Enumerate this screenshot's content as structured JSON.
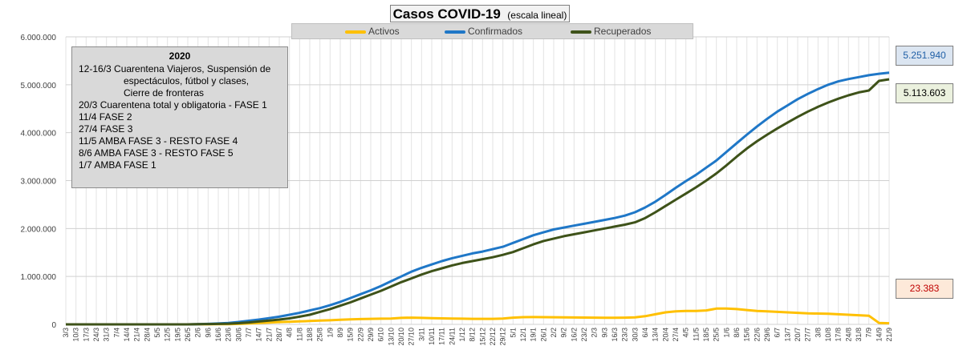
{
  "chart_data": {
    "type": "line",
    "title": "Casos  COVID-19",
    "subtitle": "(escala lineal)",
    "ylim": [
      0,
      6000000
    ],
    "y_ticks": [
      "0",
      "1.000.000",
      "2.000.000",
      "3.000.000",
      "4.000.000",
      "5.000.000",
      "6.000.000"
    ],
    "grid": true,
    "legend_placement": "top-center",
    "x_tick_labels": [
      "3/3",
      "10/3",
      "17/3",
      "24/3",
      "31/3",
      "7/4",
      "14/4",
      "21/4",
      "28/4",
      "5/5",
      "12/5",
      "19/5",
      "26/5",
      "2/6",
      "9/6",
      "16/6",
      "23/6",
      "30/6",
      "7/7",
      "14/7",
      "21/7",
      "28/7",
      "4/8",
      "11/8",
      "18/8",
      "25/8",
      "1/9",
      "8/9",
      "15/9",
      "22/9",
      "29/9",
      "6/10",
      "13/10",
      "20/10",
      "27/10",
      "3/11",
      "10/11",
      "17/11",
      "24/11",
      "1/12",
      "8/12",
      "15/12",
      "22/12",
      "29/12",
      "5/1",
      "12/1",
      "19/1",
      "26/1",
      "2/2",
      "9/2",
      "16/2",
      "23/2",
      "2/3",
      "9/3",
      "16/3",
      "23/3",
      "30/3",
      "6/4",
      "13/4",
      "20/4",
      "27/4",
      "4/5",
      "11/5",
      "18/5",
      "25/5",
      "1/6",
      "8/6",
      "15/6",
      "22/6",
      "29/6",
      "6/7",
      "13/7",
      "20/7",
      "27/7",
      "3/8",
      "10/8",
      "17/8",
      "24/8",
      "31/8",
      "7/9",
      "14/9",
      "21/9"
    ],
    "series": [
      {
        "name": "Activos",
        "color": "#ffc000",
        "values": [
          0,
          0,
          0,
          0,
          0,
          0,
          0,
          0,
          0,
          0,
          0,
          0,
          0,
          1000,
          2000,
          3000,
          5000,
          10000,
          18000,
          28000,
          38000,
          48000,
          55000,
          62000,
          70000,
          78000,
          85000,
          95000,
          105000,
          110000,
          115000,
          118000,
          120000,
          135000,
          140000,
          135000,
          130000,
          125000,
          120000,
          118000,
          115000,
          115000,
          115000,
          120000,
          140000,
          150000,
          152000,
          150000,
          148000,
          146000,
          144000,
          142000,
          140000,
          138000,
          138000,
          140000,
          145000,
          170000,
          210000,
          250000,
          270000,
          280000,
          280000,
          290000,
          330000,
          330000,
          320000,
          300000,
          280000,
          270000,
          260000,
          250000,
          240000,
          230000,
          225000,
          220000,
          210000,
          200000,
          190000,
          180000,
          30000,
          23383
        ]
      },
      {
        "name": "Confirmados",
        "color": "#1f77c7",
        "values": [
          0,
          0,
          0,
          0,
          0,
          0,
          0,
          0,
          0,
          0,
          0,
          0,
          0,
          5000,
          10000,
          18000,
          30000,
          50000,
          75000,
          100000,
          130000,
          160000,
          200000,
          240000,
          290000,
          340000,
          400000,
          470000,
          550000,
          630000,
          710000,
          800000,
          900000,
          1000000,
          1100000,
          1180000,
          1250000,
          1320000,
          1380000,
          1430000,
          1480000,
          1520000,
          1570000,
          1620000,
          1700000,
          1780000,
          1860000,
          1920000,
          1980000,
          2020000,
          2060000,
          2100000,
          2140000,
          2180000,
          2220000,
          2270000,
          2340000,
          2440000,
          2560000,
          2700000,
          2850000,
          2990000,
          3120000,
          3270000,
          3420000,
          3600000,
          3780000,
          3960000,
          4130000,
          4290000,
          4440000,
          4570000,
          4700000,
          4810000,
          4910000,
          5000000,
          5070000,
          5120000,
          5160000,
          5200000,
          5230000,
          5251940
        ]
      },
      {
        "name": "Recuperados",
        "color": "#3e5219",
        "values": [
          0,
          0,
          0,
          0,
          0,
          0,
          0,
          0,
          0,
          0,
          0,
          0,
          0,
          3000,
          6000,
          10000,
          15000,
          25000,
          40000,
          60000,
          80000,
          100000,
          125000,
          160000,
          200000,
          260000,
          320000,
          390000,
          460000,
          540000,
          620000,
          700000,
          790000,
          880000,
          960000,
          1040000,
          1110000,
          1170000,
          1230000,
          1280000,
          1320000,
          1360000,
          1400000,
          1450000,
          1510000,
          1590000,
          1670000,
          1740000,
          1790000,
          1840000,
          1880000,
          1920000,
          1960000,
          2000000,
          2040000,
          2080000,
          2130000,
          2220000,
          2340000,
          2470000,
          2600000,
          2730000,
          2860000,
          3000000,
          3150000,
          3320000,
          3500000,
          3670000,
          3820000,
          3960000,
          4090000,
          4210000,
          4330000,
          4440000,
          4540000,
          4630000,
          4710000,
          4780000,
          4840000,
          4880000,
          5080000,
          5113603
        ]
      }
    ],
    "callouts": {
      "confirmados": "5.251.940",
      "recuperados": "5.113.603",
      "activos": "23.383"
    },
    "notes": {
      "year": "2020",
      "lines": [
        "12-16/3  Cuarentena Viajeros, Suspensión de",
        "espectáculos, fútbol y clases,",
        "Cierre de fronteras",
        "20/3 Cuarentena total y obligatoria - FASE 1",
        "11/4 FASE 2",
        "27/4 FASE 3",
        "11/5 AMBA FASE 3 - RESTO FASE 4",
        "8/6 AMBA FASE 3  - RESTO FASE 5",
        "1/7 AMBA FASE 1"
      ]
    }
  }
}
